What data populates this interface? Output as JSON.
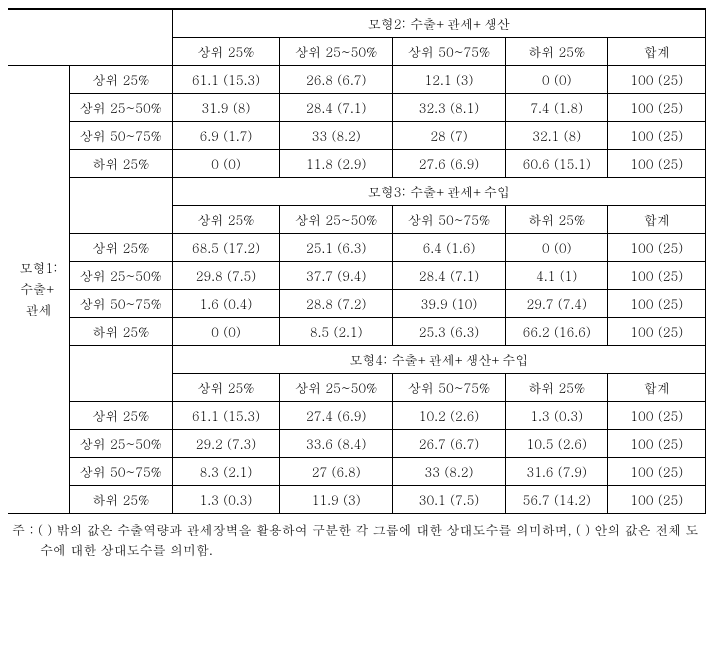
{
  "left_model_label_lines": [
    "모형1:",
    "수출+",
    "관세"
  ],
  "col_headers": [
    "상위 25%",
    "상위 25~50%",
    "상위 50~75%",
    "하위 25%",
    "합계"
  ],
  "row_labels": [
    "상위 25%",
    "상위 25~50%",
    "상위 50~75%",
    "하위 25%"
  ],
  "blocks": [
    {
      "title": "모형2: 수출+관세+생산",
      "rows": [
        [
          "61.1 (15.3)",
          "26.8 (6.7)",
          "12.1 (3)",
          "0 (0)",
          "100 (25)"
        ],
        [
          "31.9 (8)",
          "28.4 (7.1)",
          "32.3 (8.1)",
          "7.4 (1.8)",
          "100 (25)"
        ],
        [
          "6.9 (1.7)",
          "33 (8.2)",
          "28 (7)",
          "32.1 (8)",
          "100 (25)"
        ],
        [
          "0 (0)",
          "11.8 (2.9)",
          "27.6 (6.9)",
          "60.6 (15.1)",
          "100 (25)"
        ]
      ]
    },
    {
      "title": "모형3: 수출+관세+수입",
      "rows": [
        [
          "68.5 (17.2)",
          "25.1 (6.3)",
          "6.4 (1.6)",
          "0 (0)",
          "100 (25)"
        ],
        [
          "29.8 (7.5)",
          "37.7 (9.4)",
          "28.4 (7.1)",
          "4.1 (1)",
          "100 (25)"
        ],
        [
          "1.6 (0.4)",
          "28.8 (7.2)",
          "39.9 (10)",
          "29.7 (7.4)",
          "100 (25)"
        ],
        [
          "0 (0)",
          "8.5 (2.1)",
          "25.3 (6.3)",
          "66.2 (16.6)",
          "100 (25)"
        ]
      ]
    },
    {
      "title": "모형4: 수출+관세+생산+수입",
      "rows": [
        [
          "61.1 (15.3)",
          "27.4 (6.9)",
          "10.2 (2.6)",
          "1.3 (0.3)",
          "100 (25)"
        ],
        [
          "29.2 (7.3)",
          "33.6 (8.4)",
          "26.7 (6.7)",
          "10.5 (2.6)",
          "100 (25)"
        ],
        [
          "8.3 (2.1)",
          "27 (6.8)",
          "33 (8.2)",
          "31.6 (7.9)",
          "100 (25)"
        ],
        [
          "1.3 (0.3)",
          "11.9 (3)",
          "30.1 (7.5)",
          "56.7 (14.2)",
          "100 (25)"
        ]
      ]
    }
  ],
  "footnote_prefix": "주 : ",
  "footnote_body": "(    ) 밖의 값은 수출역량과 관세장벽을 활용하여 구분한 각 그룹에 대한 상대도수를 의미하며, (    ) 안의 값은 전체 도수에 대한 상대도수를 의미함.",
  "styles": {
    "font_size_pt": 10,
    "border_color": "#000000",
    "background_color": "#ffffff",
    "text_color": "#000000"
  }
}
